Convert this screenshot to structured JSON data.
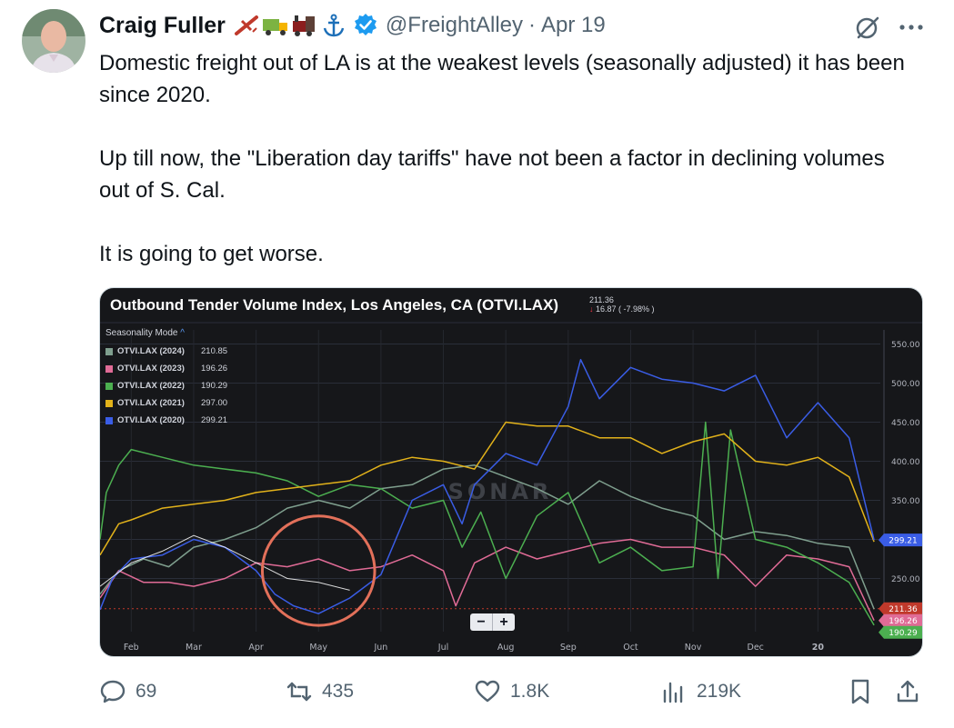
{
  "tweet": {
    "author_name": "Craig Fuller",
    "name_emojis": [
      "airplane-emoji",
      "truck-emoji",
      "locomotive-emoji",
      "anchor-emoji"
    ],
    "handle": "@FreightAlley",
    "separator": "·",
    "date": "Apr 19",
    "text": [
      "Domestic freight out of LA is at the weakest levels (seasonally adjusted) it has been since 2020.",
      "Up till now, the \"Liberation day tariffs\" have not been a factor in declining volumes out of S. Cal.",
      "It is going to get worse."
    ]
  },
  "actions": {
    "replies": "69",
    "reposts": "435",
    "likes": "1.8K",
    "views": "219K"
  },
  "chart": {
    "title": "Outbound Tender Volume Index, Los Angeles, CA (OTVI.LAX)",
    "last_value": "211.36",
    "change": "16.87 ( -7.98% )",
    "watermark": "SONAR",
    "seasonality_label": "Seasonality Mode",
    "seasonality_caret": "^",
    "zoom_out": "−",
    "zoom_in": "+",
    "colors": {
      "background": "#16171a",
      "y2024": "#7f9f8e",
      "y2023": "#e06b96",
      "y2022": "#4caf50",
      "y2021": "#e2b21a",
      "y2020": "#3a5de6",
      "annotation": "#e2705a"
    }
  },
  "chart_data": {
    "type": "line",
    "title": "Outbound Tender Volume Index, Los Angeles, CA (OTVI.LAX)",
    "x_ticks": [
      "Feb",
      "Mar",
      "Apr",
      "May",
      "Jun",
      "Jul",
      "Aug",
      "Sep",
      "Oct",
      "Nov",
      "Dec",
      "20"
    ],
    "y_ticks": [
      250,
      300,
      350,
      400,
      450,
      500,
      550
    ],
    "y_tick_labels": [
      "250.00",
      "300.00",
      "350.00",
      "400.00",
      "450.00",
      "500.00",
      "550.00"
    ],
    "ylim": [
      182,
      568
    ],
    "x_range_months": [
      0.5,
      13.0
    ],
    "reference_line": 211.36,
    "price_tags": [
      {
        "value": 299.21,
        "label": "299.21",
        "color": "#3a5de6"
      },
      {
        "value": 211.36,
        "label": "211.36",
        "color": "#c0392b"
      },
      {
        "value": 196.26,
        "label": "196.26",
        "color": "#e06b96"
      },
      {
        "value": 190.29,
        "label": "190.29",
        "color": "#4caf50"
      }
    ],
    "legend_position": "top-left",
    "series": [
      {
        "name": "OTVI.LAX (2024)",
        "value_label": "210.85",
        "color": "#7f9f8e",
        "points": [
          [
            0.5,
            230
          ],
          [
            0.8,
            260
          ],
          [
            1.2,
            275
          ],
          [
            1.6,
            265
          ],
          [
            2.0,
            290
          ],
          [
            2.5,
            300
          ],
          [
            3.0,
            315
          ],
          [
            3.5,
            340
          ],
          [
            4.0,
            350
          ],
          [
            4.5,
            340
          ],
          [
            5.0,
            365
          ],
          [
            5.5,
            370
          ],
          [
            6.0,
            390
          ],
          [
            6.5,
            395
          ],
          [
            7.0,
            380
          ],
          [
            7.5,
            365
          ],
          [
            8.0,
            345
          ],
          [
            8.5,
            375
          ],
          [
            9.0,
            355
          ],
          [
            9.5,
            340
          ],
          [
            10.0,
            330
          ],
          [
            10.5,
            300
          ],
          [
            11.0,
            310
          ],
          [
            11.5,
            305
          ],
          [
            12.0,
            295
          ],
          [
            12.5,
            290
          ],
          [
            12.9,
            210.85
          ]
        ]
      },
      {
        "name": "OTVI.LAX (2023)",
        "value_label": "196.26",
        "color": "#e06b96",
        "points": [
          [
            0.5,
            225
          ],
          [
            0.8,
            260
          ],
          [
            1.2,
            245
          ],
          [
            1.6,
            245
          ],
          [
            2.0,
            240
          ],
          [
            2.5,
            250
          ],
          [
            3.0,
            270
          ],
          [
            3.5,
            265
          ],
          [
            4.0,
            275
          ],
          [
            4.5,
            260
          ],
          [
            5.0,
            265
          ],
          [
            5.5,
            280
          ],
          [
            6.0,
            260
          ],
          [
            6.2,
            215
          ],
          [
            6.5,
            270
          ],
          [
            7.0,
            290
          ],
          [
            7.5,
            275
          ],
          [
            8.0,
            285
          ],
          [
            8.5,
            295
          ],
          [
            9.0,
            300
          ],
          [
            9.5,
            290
          ],
          [
            10.0,
            290
          ],
          [
            10.5,
            280
          ],
          [
            11.0,
            240
          ],
          [
            11.5,
            280
          ],
          [
            12.0,
            275
          ],
          [
            12.5,
            265
          ],
          [
            12.9,
            196.26
          ]
        ]
      },
      {
        "name": "OTVI.LAX (2022)",
        "value_label": "190.29",
        "color": "#4caf50",
        "points": [
          [
            0.5,
            300
          ],
          [
            0.6,
            360
          ],
          [
            0.8,
            395
          ],
          [
            1.0,
            415
          ],
          [
            1.5,
            405
          ],
          [
            2.0,
            395
          ],
          [
            2.5,
            390
          ],
          [
            3.0,
            385
          ],
          [
            3.5,
            375
          ],
          [
            4.0,
            355
          ],
          [
            4.5,
            370
          ],
          [
            5.0,
            365
          ],
          [
            5.5,
            340
          ],
          [
            6.0,
            350
          ],
          [
            6.3,
            290
          ],
          [
            6.6,
            335
          ],
          [
            7.0,
            250
          ],
          [
            7.5,
            330
          ],
          [
            8.0,
            360
          ],
          [
            8.5,
            270
          ],
          [
            9.0,
            290
          ],
          [
            9.5,
            260
          ],
          [
            10.0,
            265
          ],
          [
            10.2,
            450
          ],
          [
            10.4,
            250
          ],
          [
            10.6,
            440
          ],
          [
            11.0,
            300
          ],
          [
            11.5,
            290
          ],
          [
            12.0,
            270
          ],
          [
            12.5,
            245
          ],
          [
            12.9,
            190.29
          ]
        ]
      },
      {
        "name": "OTVI.LAX (2021)",
        "value_label": "297.00",
        "color": "#e2b21a",
        "points": [
          [
            0.5,
            280
          ],
          [
            0.8,
            320
          ],
          [
            1.0,
            325
          ],
          [
            1.5,
            340
          ],
          [
            2.0,
            345
          ],
          [
            2.5,
            350
          ],
          [
            3.0,
            360
          ],
          [
            3.5,
            365
          ],
          [
            4.0,
            370
          ],
          [
            4.5,
            375
          ],
          [
            5.0,
            395
          ],
          [
            5.5,
            405
          ],
          [
            6.0,
            400
          ],
          [
            6.5,
            390
          ],
          [
            7.0,
            450
          ],
          [
            7.5,
            445
          ],
          [
            8.0,
            445
          ],
          [
            8.5,
            430
          ],
          [
            9.0,
            430
          ],
          [
            9.5,
            410
          ],
          [
            10.0,
            425
          ],
          [
            10.5,
            435
          ],
          [
            11.0,
            400
          ],
          [
            11.5,
            395
          ],
          [
            12.0,
            405
          ],
          [
            12.5,
            380
          ],
          [
            12.9,
            297.0
          ]
        ]
      },
      {
        "name": "OTVI.LAX (2020)",
        "value_label": "299.21",
        "color": "#3a5de6",
        "points": [
          [
            0.5,
            210
          ],
          [
            0.7,
            250
          ],
          [
            1.0,
            275
          ],
          [
            1.5,
            280
          ],
          [
            2.0,
            300
          ],
          [
            2.5,
            290
          ],
          [
            3.0,
            260
          ],
          [
            3.3,
            230
          ],
          [
            3.6,
            215
          ],
          [
            4.0,
            205
          ],
          [
            4.5,
            225
          ],
          [
            5.0,
            255
          ],
          [
            5.5,
            350
          ],
          [
            6.0,
            370
          ],
          [
            6.3,
            320
          ],
          [
            6.5,
            370
          ],
          [
            7.0,
            410
          ],
          [
            7.5,
            395
          ],
          [
            8.0,
            470
          ],
          [
            8.2,
            530
          ],
          [
            8.5,
            480
          ],
          [
            9.0,
            520
          ],
          [
            9.5,
            505
          ],
          [
            10.0,
            500
          ],
          [
            10.5,
            490
          ],
          [
            11.0,
            510
          ],
          [
            11.5,
            430
          ],
          [
            12.0,
            475
          ],
          [
            12.5,
            430
          ],
          [
            12.9,
            299.21
          ]
        ]
      }
    ],
    "overlay_series": {
      "color": "#ffffff",
      "points": [
        [
          0.5,
          240
        ],
        [
          1.0,
          270
        ],
        [
          1.5,
          285
        ],
        [
          2.0,
          305
        ],
        [
          2.5,
          290
        ],
        [
          3.0,
          270
        ],
        [
          3.5,
          250
        ],
        [
          4.0,
          245
        ],
        [
          4.5,
          235
        ]
      ]
    },
    "annotation": {
      "type": "ellipse",
      "center": [
        4.0,
        260
      ],
      "radius_x_months": 0.9,
      "radius_y": 70
    }
  }
}
